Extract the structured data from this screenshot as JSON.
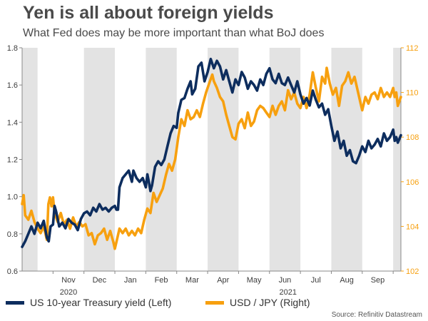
{
  "title": "Yen is all about foreign yields",
  "subtitle": "What Fed does may be more important than what BoJ does",
  "source": "Source: Refinitiv Datastream",
  "colors": {
    "us10y": "#0d2d5e",
    "usdjpy": "#f7a00f",
    "band": "#e3e3e3",
    "axis": "#888888",
    "left_tick": "#3c3c3c",
    "right_tick": "#f7a00f"
  },
  "legend": [
    {
      "label": "US 10-year Treasury yield (Left)",
      "series": "us10y"
    },
    {
      "label": "USD / JPY (Right)",
      "series": "usdjpy"
    }
  ],
  "chart_data": {
    "type": "line",
    "title": "Yen is all about foreign yields",
    "subtitle": "What Fed does may be more important than what BoJ does",
    "x_range": [
      0,
      12.25
    ],
    "months": [
      "Nov",
      "Dec",
      "Jan",
      "Feb",
      "Mar",
      "Apr",
      "May",
      "Jun",
      "Jul",
      "Aug",
      "Sep"
    ],
    "years": [
      {
        "label": "2020",
        "at": 1.5
      },
      {
        "label": "2021",
        "at": 8.6
      }
    ],
    "bands": [
      [
        0.0,
        0.5
      ],
      [
        2.0,
        3.0
      ],
      [
        4.0,
        5.0
      ],
      [
        6.0,
        7.0
      ],
      [
        8.0,
        9.0
      ],
      [
        10.0,
        11.0
      ],
      [
        12.0,
        12.25
      ]
    ],
    "left_axis": {
      "min": 0.6,
      "max": 1.8,
      "ticks": [
        "0.6",
        "0.8",
        "1.0",
        "1.2",
        "1.4",
        "1.6",
        "1.8"
      ]
    },
    "right_axis": {
      "min": 102,
      "max": 112,
      "ticks": [
        "102",
        "104",
        "106",
        "108",
        "110",
        "112"
      ]
    },
    "series": [
      {
        "name": "US 10-year Treasury yield (Left)",
        "key": "us10y",
        "axis": "left",
        "points": [
          [
            0.0,
            0.73
          ],
          [
            0.1,
            0.76
          ],
          [
            0.2,
            0.8
          ],
          [
            0.3,
            0.84
          ],
          [
            0.4,
            0.8
          ],
          [
            0.5,
            0.86
          ],
          [
            0.6,
            0.83
          ],
          [
            0.7,
            0.87
          ],
          [
            0.8,
            0.78
          ],
          [
            0.86,
            0.76
          ],
          [
            0.92,
            0.84
          ],
          [
            1.0,
            0.85
          ],
          [
            1.05,
            0.95
          ],
          [
            1.1,
            0.92
          ],
          [
            1.2,
            0.84
          ],
          [
            1.3,
            0.86
          ],
          [
            1.4,
            0.83
          ],
          [
            1.5,
            0.88
          ],
          [
            1.6,
            0.86
          ],
          [
            1.7,
            0.85
          ],
          [
            1.8,
            0.82
          ],
          [
            1.9,
            0.88
          ],
          [
            2.0,
            0.91
          ],
          [
            2.1,
            0.92
          ],
          [
            2.2,
            0.9
          ],
          [
            2.3,
            0.94
          ],
          [
            2.4,
            0.92
          ],
          [
            2.5,
            0.96
          ],
          [
            2.6,
            0.93
          ],
          [
            2.7,
            0.94
          ],
          [
            2.8,
            0.92
          ],
          [
            2.9,
            0.94
          ],
          [
            3.0,
            0.95
          ],
          [
            3.05,
            0.93
          ],
          [
            3.1,
            0.93
          ],
          [
            3.15,
            1.05
          ],
          [
            3.25,
            1.1
          ],
          [
            3.35,
            1.12
          ],
          [
            3.45,
            1.14
          ],
          [
            3.55,
            1.08
          ],
          [
            3.6,
            1.14
          ],
          [
            3.7,
            1.1
          ],
          [
            3.8,
            1.08
          ],
          [
            3.9,
            1.1
          ],
          [
            4.0,
            1.05
          ],
          [
            4.05,
            1.12
          ],
          [
            4.1,
            1.08
          ],
          [
            4.15,
            1.03
          ],
          [
            4.2,
            1.06
          ],
          [
            4.3,
            1.16
          ],
          [
            4.4,
            1.19
          ],
          [
            4.5,
            1.17
          ],
          [
            4.6,
            1.2
          ],
          [
            4.7,
            1.27
          ],
          [
            4.8,
            1.34
          ],
          [
            4.9,
            1.38
          ],
          [
            5.0,
            1.37
          ],
          [
            5.05,
            1.45
          ],
          [
            5.15,
            1.52
          ],
          [
            5.25,
            1.53
          ],
          [
            5.35,
            1.58
          ],
          [
            5.45,
            1.62
          ],
          [
            5.5,
            1.55
          ],
          [
            5.6,
            1.58
          ],
          [
            5.7,
            1.7
          ],
          [
            5.8,
            1.72
          ],
          [
            5.9,
            1.62
          ],
          [
            6.0,
            1.67
          ],
          [
            6.1,
            1.74
          ],
          [
            6.2,
            1.69
          ],
          [
            6.3,
            1.73
          ],
          [
            6.4,
            1.7
          ],
          [
            6.5,
            1.63
          ],
          [
            6.6,
            1.68
          ],
          [
            6.7,
            1.62
          ],
          [
            6.8,
            1.56
          ],
          [
            6.9,
            1.63
          ],
          [
            7.0,
            1.6
          ],
          [
            7.1,
            1.67
          ],
          [
            7.2,
            1.64
          ],
          [
            7.3,
            1.58
          ],
          [
            7.4,
            1.62
          ],
          [
            7.5,
            1.6
          ],
          [
            7.6,
            1.57
          ],
          [
            7.7,
            1.63
          ],
          [
            7.8,
            1.6
          ],
          [
            7.9,
            1.66
          ],
          [
            8.0,
            1.69
          ],
          [
            8.1,
            1.63
          ],
          [
            8.2,
            1.61
          ],
          [
            8.3,
            1.66
          ],
          [
            8.4,
            1.61
          ],
          [
            8.5,
            1.6
          ],
          [
            8.6,
            1.64
          ],
          [
            8.7,
            1.6
          ],
          [
            8.8,
            1.56
          ],
          [
            8.9,
            1.62
          ],
          [
            9.0,
            1.55
          ],
          [
            9.1,
            1.5
          ],
          [
            9.2,
            1.53
          ],
          [
            9.3,
            1.49
          ],
          [
            9.4,
            1.57
          ],
          [
            9.5,
            1.52
          ],
          [
            9.6,
            1.48
          ],
          [
            9.7,
            1.5
          ],
          [
            9.8,
            1.44
          ],
          [
            9.9,
            1.47
          ],
          [
            10.0,
            1.38
          ],
          [
            10.1,
            1.3
          ],
          [
            10.2,
            1.35
          ],
          [
            10.3,
            1.26
          ],
          [
            10.4,
            1.3
          ],
          [
            10.5,
            1.22
          ],
          [
            10.6,
            1.25
          ],
          [
            10.7,
            1.19
          ],
          [
            10.8,
            1.18
          ],
          [
            10.9,
            1.22
          ],
          [
            11.0,
            1.27
          ],
          [
            11.1,
            1.24
          ],
          [
            11.2,
            1.3
          ],
          [
            11.3,
            1.26
          ],
          [
            11.4,
            1.28
          ],
          [
            11.5,
            1.31
          ],
          [
            11.6,
            1.27
          ],
          [
            11.7,
            1.34
          ],
          [
            11.8,
            1.3
          ],
          [
            11.9,
            1.32
          ],
          [
            12.0,
            1.36
          ],
          [
            12.05,
            1.3
          ],
          [
            12.1,
            1.32
          ],
          [
            12.15,
            1.29
          ],
          [
            12.25,
            1.33
          ]
        ]
      },
      {
        "name": "USD / JPY (Right)",
        "key": "usdjpy",
        "axis": "right",
        "points": [
          [
            0.0,
            105.0
          ],
          [
            0.05,
            105.4
          ],
          [
            0.1,
            104.5
          ],
          [
            0.2,
            104.3
          ],
          [
            0.3,
            104.7
          ],
          [
            0.4,
            104.2
          ],
          [
            0.5,
            103.9
          ],
          [
            0.6,
            103.7
          ],
          [
            0.7,
            104.0
          ],
          [
            0.8,
            103.4
          ],
          [
            0.85,
            105.0
          ],
          [
            0.9,
            105.3
          ],
          [
            0.95,
            104.9
          ],
          [
            1.0,
            105.3
          ],
          [
            1.05,
            104.6
          ],
          [
            1.15,
            104.2
          ],
          [
            1.25,
            104.6
          ],
          [
            1.35,
            104.1
          ],
          [
            1.45,
            104.3
          ],
          [
            1.55,
            103.9
          ],
          [
            1.65,
            104.4
          ],
          [
            1.75,
            104.0
          ],
          [
            1.85,
            104.2
          ],
          [
            1.95,
            104.0
          ],
          [
            2.05,
            104.1
          ],
          [
            2.15,
            103.6
          ],
          [
            2.25,
            103.7
          ],
          [
            2.35,
            103.2
          ],
          [
            2.45,
            103.6
          ],
          [
            2.55,
            103.7
          ],
          [
            2.65,
            103.9
          ],
          [
            2.75,
            103.4
          ],
          [
            2.85,
            103.8
          ],
          [
            2.95,
            103.3
          ],
          [
            3.0,
            103.0
          ],
          [
            3.05,
            103.3
          ],
          [
            3.15,
            103.9
          ],
          [
            3.25,
            103.7
          ],
          [
            3.35,
            103.9
          ],
          [
            3.45,
            103.6
          ],
          [
            3.55,
            103.8
          ],
          [
            3.65,
            103.6
          ],
          [
            3.75,
            103.9
          ],
          [
            3.85,
            103.7
          ],
          [
            3.95,
            104.3
          ],
          [
            4.05,
            104.8
          ],
          [
            4.15,
            104.6
          ],
          [
            4.25,
            105.5
          ],
          [
            4.35,
            105.1
          ],
          [
            4.45,
            105.4
          ],
          [
            4.55,
            105.7
          ],
          [
            4.65,
            106.3
          ],
          [
            4.75,
            106.8
          ],
          [
            4.85,
            106.5
          ],
          [
            4.95,
            107.0
          ],
          [
            5.05,
            108.0
          ],
          [
            5.15,
            108.8
          ],
          [
            5.25,
            108.5
          ],
          [
            5.35,
            109.2
          ],
          [
            5.45,
            108.8
          ],
          [
            5.55,
            108.9
          ],
          [
            5.65,
            109.2
          ],
          [
            5.75,
            108.9
          ],
          [
            5.85,
            109.5
          ],
          [
            5.95,
            110.0
          ],
          [
            6.05,
            110.4
          ],
          [
            6.15,
            110.8
          ],
          [
            6.2,
            110.5
          ],
          [
            6.3,
            110.2
          ],
          [
            6.4,
            109.8
          ],
          [
            6.5,
            109.6
          ],
          [
            6.6,
            109.0
          ],
          [
            6.7,
            108.5
          ],
          [
            6.8,
            108.0
          ],
          [
            6.9,
            107.9
          ],
          [
            7.0,
            108.6
          ],
          [
            7.1,
            108.8
          ],
          [
            7.2,
            108.4
          ],
          [
            7.3,
            109.1
          ],
          [
            7.4,
            108.5
          ],
          [
            7.5,
            108.7
          ],
          [
            7.6,
            109.2
          ],
          [
            7.7,
            109.4
          ],
          [
            7.8,
            109.3
          ],
          [
            7.9,
            109.1
          ],
          [
            8.0,
            108.9
          ],
          [
            8.1,
            109.4
          ],
          [
            8.2,
            109.0
          ],
          [
            8.3,
            109.4
          ],
          [
            8.4,
            109.6
          ],
          [
            8.5,
            109.2
          ],
          [
            8.6,
            110.1
          ],
          [
            8.7,
            109.7
          ],
          [
            8.8,
            110.0
          ],
          [
            8.9,
            109.5
          ],
          [
            9.0,
            109.3
          ],
          [
            9.1,
            109.8
          ],
          [
            9.2,
            109.3
          ],
          [
            9.3,
            109.9
          ],
          [
            9.4,
            110.9
          ],
          [
            9.5,
            110.2
          ],
          [
            9.6,
            109.6
          ],
          [
            9.7,
            110.7
          ],
          [
            9.8,
            110.4
          ],
          [
            9.85,
            111.1
          ],
          [
            9.95,
            110.4
          ],
          [
            10.05,
            109.9
          ],
          [
            10.15,
            110.2
          ],
          [
            10.25,
            109.4
          ],
          [
            10.35,
            110.3
          ],
          [
            10.45,
            110.5
          ],
          [
            10.55,
            110.9
          ],
          [
            10.65,
            110.4
          ],
          [
            10.75,
            110.7
          ],
          [
            10.85,
            110.1
          ],
          [
            10.95,
            109.5
          ],
          [
            11.0,
            109.2
          ],
          [
            11.1,
            109.8
          ],
          [
            11.2,
            109.5
          ],
          [
            11.3,
            109.9
          ],
          [
            11.4,
            110.0
          ],
          [
            11.5,
            109.7
          ],
          [
            11.6,
            110.2
          ],
          [
            11.7,
            109.8
          ],
          [
            11.8,
            110.0
          ],
          [
            11.9,
            109.8
          ],
          [
            12.0,
            110.2
          ],
          [
            12.05,
            109.8
          ],
          [
            12.1,
            110.0
          ],
          [
            12.15,
            109.4
          ],
          [
            12.25,
            109.8
          ]
        ]
      }
    ]
  }
}
